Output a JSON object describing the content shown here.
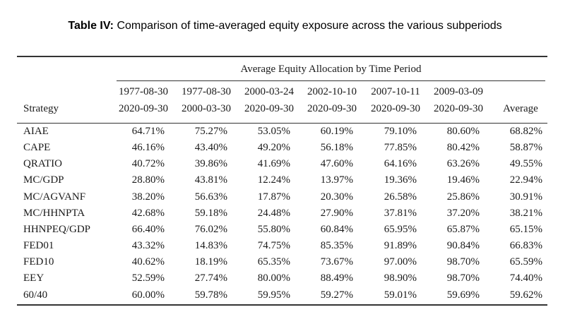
{
  "caption": {
    "label": "Table IV:",
    "text": "Comparison of time-averaged equity exposure across the various subperiods"
  },
  "table": {
    "group_header": "Average Equity Allocation by Time Period",
    "stub_header": "Strategy",
    "columns": [
      {
        "start": "1977-08-30",
        "end": "2020-09-30"
      },
      {
        "start": "1977-08-30",
        "end": "2000-03-30"
      },
      {
        "start": "2000-03-24",
        "end": "2020-09-30"
      },
      {
        "start": "2002-10-10",
        "end": "2020-09-30"
      },
      {
        "start": "2007-10-11",
        "end": "2020-09-30"
      },
      {
        "start": "2009-03-09",
        "end": "2020-09-30"
      },
      {
        "start": "",
        "end": "Average"
      }
    ],
    "rows": [
      {
        "strategy": "AIAE",
        "values": [
          "64.71%",
          "75.27%",
          "53.05%",
          "60.19%",
          "79.10%",
          "80.60%",
          "68.82%"
        ]
      },
      {
        "strategy": "CAPE",
        "values": [
          "46.16%",
          "43.40%",
          "49.20%",
          "56.18%",
          "77.85%",
          "80.42%",
          "58.87%"
        ]
      },
      {
        "strategy": "QRATIO",
        "values": [
          "40.72%",
          "39.86%",
          "41.69%",
          "47.60%",
          "64.16%",
          "63.26%",
          "49.55%"
        ]
      },
      {
        "strategy": "MC/GDP",
        "values": [
          "28.80%",
          "43.81%",
          "12.24%",
          "13.97%",
          "19.36%",
          "19.46%",
          "22.94%"
        ]
      },
      {
        "strategy": "MC/AGVANF",
        "values": [
          "38.20%",
          "56.63%",
          "17.87%",
          "20.30%",
          "26.58%",
          "25.86%",
          "30.91%"
        ]
      },
      {
        "strategy": "MC/HHNPTA",
        "values": [
          "42.68%",
          "59.18%",
          "24.48%",
          "27.90%",
          "37.81%",
          "37.20%",
          "38.21%"
        ]
      },
      {
        "strategy": "HHNPEQ/GDP",
        "values": [
          "66.40%",
          "76.02%",
          "55.80%",
          "60.84%",
          "65.95%",
          "65.87%",
          "65.15%"
        ]
      },
      {
        "strategy": "FED01",
        "values": [
          "43.32%",
          "14.83%",
          "74.75%",
          "85.35%",
          "91.89%",
          "90.84%",
          "66.83%"
        ]
      },
      {
        "strategy": "FED10",
        "values": [
          "40.62%",
          "18.19%",
          "65.35%",
          "73.67%",
          "97.00%",
          "98.70%",
          "65.59%"
        ]
      },
      {
        "strategy": "EEY",
        "values": [
          "52.59%",
          "27.74%",
          "80.00%",
          "88.49%",
          "98.90%",
          "98.70%",
          "74.40%"
        ]
      },
      {
        "strategy": "60/40",
        "values": [
          "60.00%",
          "59.78%",
          "59.95%",
          "59.27%",
          "59.01%",
          "59.69%",
          "59.62%"
        ]
      }
    ]
  }
}
